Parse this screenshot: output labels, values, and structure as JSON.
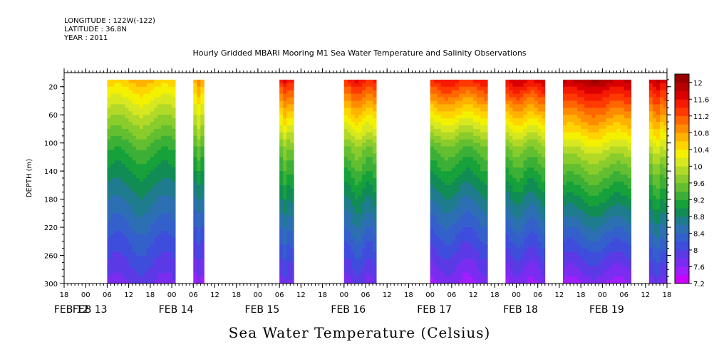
{
  "header": {
    "longitude": "LONGITUDE : 122W(-122)",
    "latitude": "LATITUDE : 36.8N",
    "year": "YEAR : 2011"
  },
  "chart_data": {
    "type": "heatmap",
    "title": "Hourly Gridded MBARI Mooring M1 Sea Water Temperature and Salinity Observations",
    "footer_title": "Sea Water Temperature (Celsius)",
    "ylabel": "DEPTH (m)",
    "xlabel": "",
    "ylim": [
      300,
      0
    ],
    "y_ticks": [
      20,
      60,
      100,
      140,
      180,
      220,
      260,
      300
    ],
    "x_range_hours": [
      0,
      168
    ],
    "x_hour_ticks": [
      "18",
      "00",
      "06",
      "12",
      "18",
      "00",
      "06",
      "12",
      "18",
      "00",
      "06",
      "12",
      "18",
      "00",
      "06",
      "12",
      "18",
      "00",
      "06",
      "12",
      "18",
      "00",
      "06",
      "12",
      "18",
      "00",
      "06",
      "12",
      "18"
    ],
    "x_date_labels": [
      "FEB 12",
      "FEB 13",
      "FEB 14",
      "FEB 15",
      "FEB 16",
      "FEB 17",
      "FEB 18",
      "FEB 19"
    ],
    "colorbar": {
      "levels": [
        7.2,
        7.4,
        7.6,
        7.8,
        8,
        8.2,
        8.4,
        8.6,
        8.8,
        9,
        9.2,
        9.4,
        9.6,
        9.8,
        10,
        10.2,
        10.4,
        10.6,
        10.8,
        11,
        11.2,
        11.4,
        11.6,
        11.8,
        12,
        12.2
      ],
      "tick_labels": [
        "12",
        "11.6",
        "11.2",
        "10.8",
        "10.4",
        "10",
        "9.6",
        "9.2",
        "8.8",
        "8.4",
        "8",
        "7.6",
        "7.2"
      ],
      "colors": [
        "#cc00ff",
        "#9f1fff",
        "#7a2cf0",
        "#5b3ae6",
        "#3f4ddc",
        "#3460cc",
        "#2d6fb3",
        "#1f7c8e",
        "#118c55",
        "#17a13a",
        "#3cb036",
        "#63bf30",
        "#89cc2c",
        "#b2d928",
        "#d8e820",
        "#f3f100",
        "#ffd400",
        "#ffb200",
        "#ff8c00",
        "#ff6600",
        "#ff3a00",
        "#f51a00",
        "#d80000",
        "#b70000",
        "#990000"
      ]
    },
    "segments": [
      {
        "start_hour": 12,
        "end_hour": 31,
        "surface_temp": 10.8,
        "t100": 9.4,
        "bottom_temp": 7.8
      },
      {
        "start_hour": 36,
        "end_hour": 39,
        "surface_temp": 11.0,
        "t100": 9.6,
        "bottom_temp": 7.6
      },
      {
        "start_hour": 60,
        "end_hour": 64,
        "surface_temp": 11.8,
        "t100": 9.8,
        "bottom_temp": 7.8
      },
      {
        "start_hour": 78,
        "end_hour": 87,
        "surface_temp": 11.8,
        "t100": 9.8,
        "bottom_temp": 7.8
      },
      {
        "start_hour": 102,
        "end_hour": 118,
        "surface_temp": 11.8,
        "t100": 9.6,
        "bottom_temp": 7.6
      },
      {
        "start_hour": 123,
        "end_hour": 134,
        "surface_temp": 12.0,
        "t100": 9.8,
        "bottom_temp": 7.6
      },
      {
        "start_hour": 139,
        "end_hour": 158,
        "surface_temp": 12.2,
        "t100": 10.2,
        "bottom_temp": 7.6
      },
      {
        "start_hour": 163,
        "end_hour": 168,
        "surface_temp": 12.0,
        "t100": 10.2,
        "bottom_temp": 7.8
      }
    ],
    "grid": false,
    "legend_placement": "right colorbar"
  }
}
